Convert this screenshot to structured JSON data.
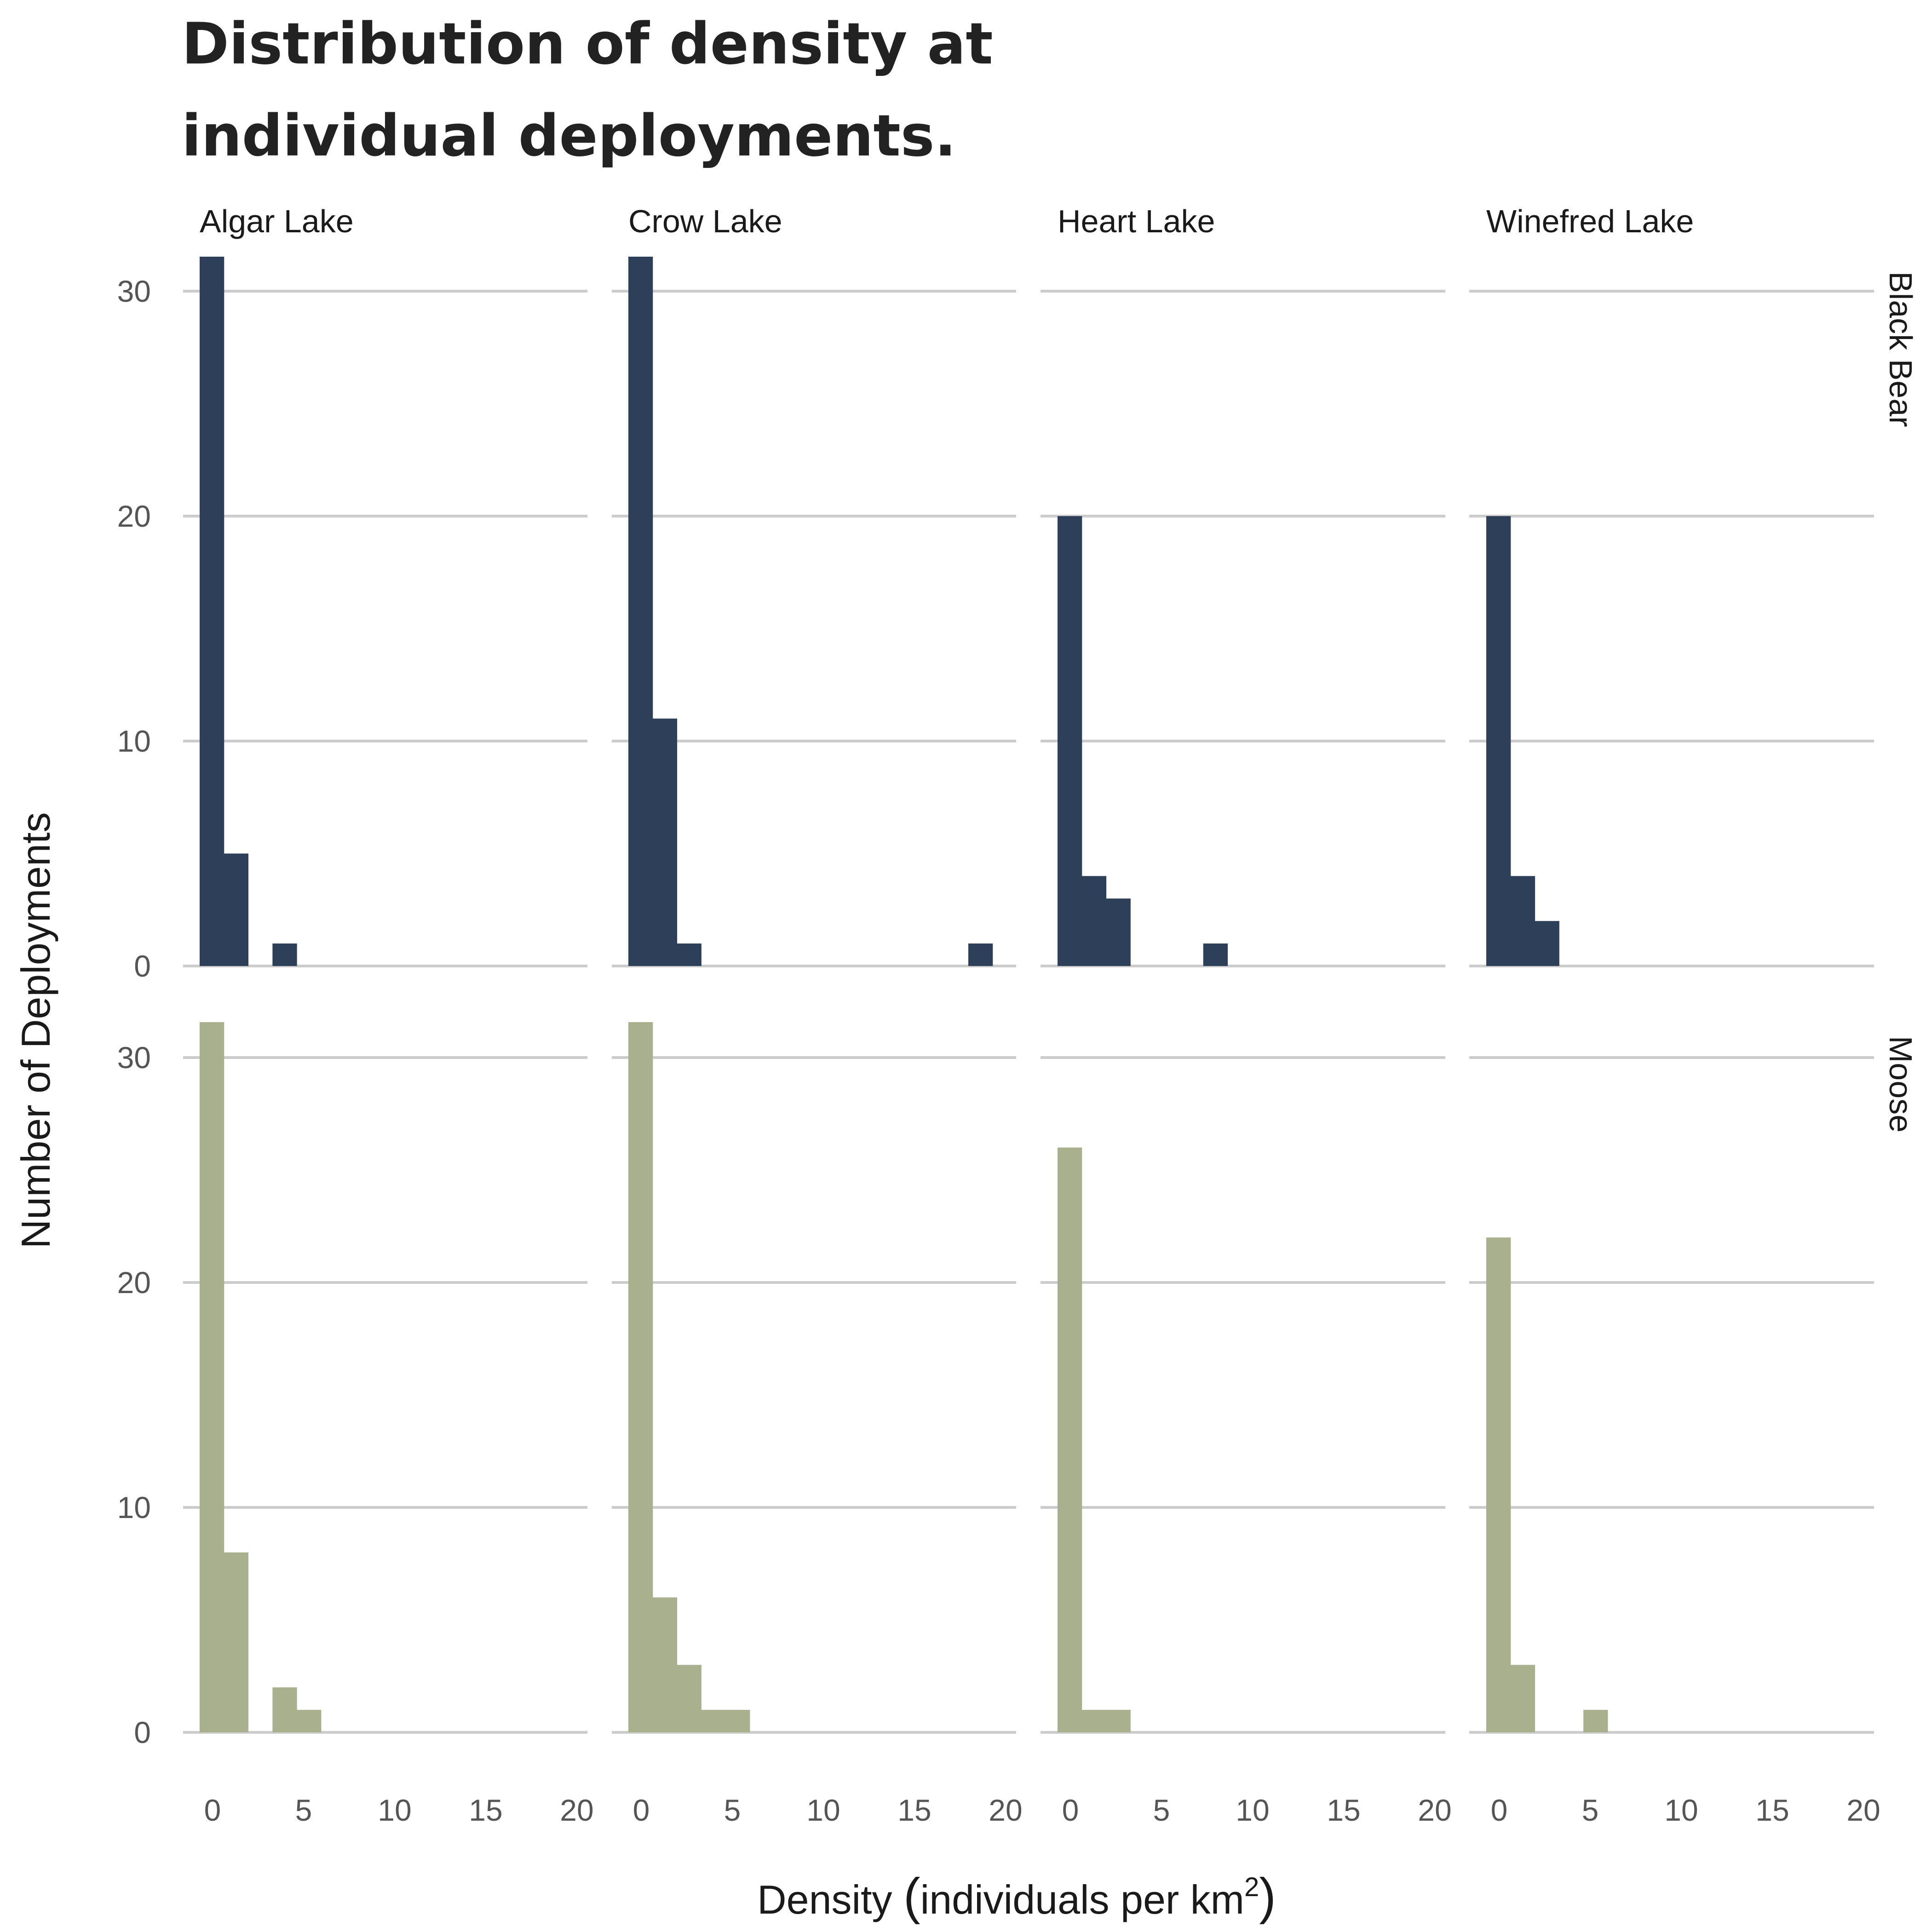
{
  "title_lines": [
    "Distribution of density at",
    "individual deployments."
  ],
  "chart_data": {
    "type": "bar",
    "subtype": "faceted histogram",
    "title": "Distribution of density at individual deployments.",
    "xlabel": "Density (individuals per km²)",
    "xlabel_parts": {
      "main": "Density ",
      "open": "(",
      "inner": "individuals per km",
      "sup": "2",
      "close": ")"
    },
    "ylabel": "Number of Deployments",
    "xlim": [
      0,
      20
    ],
    "ylim": [
      0,
      31.5
    ],
    "x_ticks": [
      0,
      5,
      10,
      15,
      20
    ],
    "y_ticks": [
      0,
      10,
      20,
      30
    ],
    "bin_width": 1.333,
    "columns": [
      "Algar Lake",
      "Crow Lake",
      "Heart Lake",
      "Winefred Lake"
    ],
    "rows": [
      {
        "name": "Black Bear",
        "color": "#2e4059"
      },
      {
        "name": "Moose",
        "color": "#a9b08d"
      }
    ],
    "grid": "horizontal",
    "panels": [
      {
        "row": "Black Bear",
        "column": "Algar Lake",
        "counts": [
          32,
          5,
          0,
          1,
          0,
          0,
          0,
          0,
          0,
          0,
          0,
          0,
          0,
          0,
          0
        ]
      },
      {
        "row": "Black Bear",
        "column": "Crow Lake",
        "counts": [
          32,
          11,
          1,
          0,
          0,
          0,
          0,
          0,
          0,
          0,
          0,
          0,
          0,
          0,
          1
        ]
      },
      {
        "row": "Black Bear",
        "column": "Heart Lake",
        "counts": [
          20,
          4,
          3,
          0,
          0,
          0,
          1,
          0,
          0,
          0,
          0,
          0,
          0,
          0,
          0
        ]
      },
      {
        "row": "Black Bear",
        "column": "Winefred Lake",
        "counts": [
          20,
          4,
          2,
          0,
          0,
          0,
          0,
          0,
          0,
          0,
          0,
          0,
          0,
          0,
          0
        ]
      },
      {
        "row": "Moose",
        "column": "Algar Lake",
        "counts": [
          32,
          8,
          0,
          2,
          1,
          0,
          0,
          0,
          0,
          0,
          0,
          0,
          0,
          0,
          0
        ]
      },
      {
        "row": "Moose",
        "column": "Crow Lake",
        "counts": [
          32,
          6,
          3,
          1,
          1,
          0,
          0,
          0,
          0,
          0,
          0,
          0,
          0,
          0,
          0
        ]
      },
      {
        "row": "Moose",
        "column": "Heart Lake",
        "counts": [
          26,
          1,
          1,
          0,
          0,
          0,
          0,
          0,
          0,
          0,
          0,
          0,
          0,
          0,
          0
        ]
      },
      {
        "row": "Moose",
        "column": "Winefred Lake",
        "counts": [
          22,
          3,
          0,
          0,
          1,
          0,
          0,
          0,
          0,
          0,
          0,
          0,
          0,
          0,
          0
        ]
      }
    ]
  }
}
